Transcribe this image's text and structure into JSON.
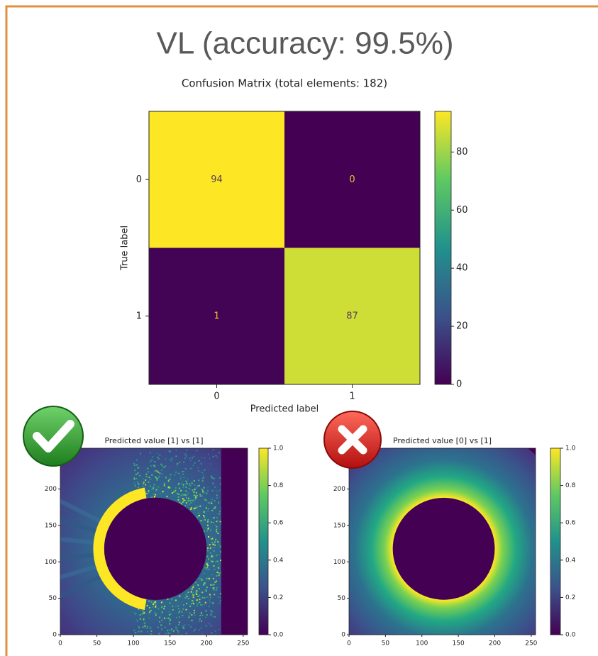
{
  "title": "VL (accuracy: 99.5%)",
  "chart_data": [
    {
      "type": "heatmap",
      "title": "Confusion Matrix (total elements: 182)",
      "x_label": "Predicted label",
      "y_label": "True label",
      "x_categories": [
        "0",
        "1"
      ],
      "y_categories": [
        "0",
        "1"
      ],
      "values": [
        [
          94,
          0
        ],
        [
          1,
          87
        ]
      ],
      "colormap": "viridis",
      "clim": [
        0,
        94
      ],
      "cticks": [
        0,
        20,
        40,
        60,
        80
      ]
    },
    {
      "type": "image",
      "title": "Predicted value [1] vs [1]",
      "xlim": [
        0,
        256
      ],
      "ylim": [
        0,
        256
      ],
      "xticks": [
        0,
        50,
        100,
        150,
        200,
        250
      ],
      "yticks": [
        0,
        50,
        100,
        150,
        200
      ],
      "colormap": "viridis",
      "clim": [
        0,
        1
      ],
      "cticks": [
        {
          "value": 0,
          "label": "0.0"
        },
        0.2,
        0.4,
        0.6,
        0.8,
        {
          "value": 1,
          "label": "1.0"
        }
      ]
    },
    {
      "type": "image",
      "title": "Predicted value [0] vs [1]",
      "xlim": [
        0,
        256
      ],
      "ylim": [
        0,
        256
      ],
      "xticks": [
        0,
        50,
        100,
        150,
        200,
        250
      ],
      "yticks": [
        0,
        50,
        100,
        150,
        200
      ],
      "colormap": "viridis",
      "clim": [
        0,
        1
      ],
      "cticks": [
        {
          "value": 0,
          "label": "0.0"
        },
        0.2,
        0.4,
        0.6,
        0.8,
        {
          "value": 1,
          "label": "1.0"
        }
      ]
    }
  ]
}
